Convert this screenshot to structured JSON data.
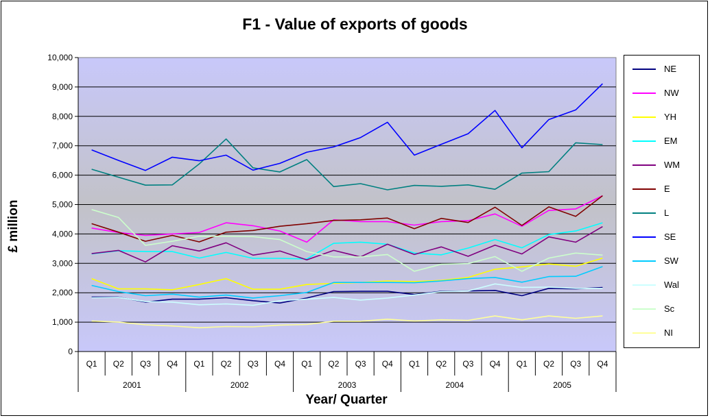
{
  "chart_data": {
    "type": "line",
    "title": "F1 - Value of exports of goods",
    "xlabel": "Year/ Quarter",
    "ylabel": "£ million",
    "ylim": [
      0,
      10000
    ],
    "yticks": [
      "0",
      "1,000",
      "2,000",
      "3,000",
      "4,000",
      "5,000",
      "6,000",
      "7,000",
      "8,000",
      "9,000",
      "10,000"
    ],
    "ytick_values": [
      0,
      1000,
      2000,
      3000,
      4000,
      5000,
      6000,
      7000,
      8000,
      9000,
      10000
    ],
    "years": [
      "2001",
      "2002",
      "2003",
      "2004",
      "2005"
    ],
    "quarters": [
      "Q1",
      "Q2",
      "Q3",
      "Q4"
    ],
    "categories": [
      "Q1",
      "Q2",
      "Q3",
      "Q4",
      "Q1",
      "Q2",
      "Q3",
      "Q4",
      "Q1",
      "Q2",
      "Q3",
      "Q4",
      "Q1",
      "Q2",
      "Q3",
      "Q4",
      "Q1",
      "Q2",
      "Q3",
      "Q4"
    ],
    "grid": true,
    "legend_position": "right",
    "plot_background": "gradient lavender-grey",
    "series": [
      {
        "name": "NE",
        "color": "#000080",
        "values": [
          1850,
          1850,
          1680,
          1780,
          1780,
          1830,
          1730,
          1650,
          1820,
          2040,
          2050,
          2050,
          1940,
          2050,
          2060,
          2080,
          1900,
          2150,
          2130,
          2180
        ]
      },
      {
        "name": "NW",
        "color": "#FF00FF",
        "values": [
          4200,
          4050,
          3950,
          4000,
          4050,
          4380,
          4280,
          4100,
          3720,
          4480,
          4420,
          4420,
          4300,
          4420,
          4450,
          4680,
          4260,
          4800,
          4850,
          5300
        ]
      },
      {
        "name": "YH",
        "color": "#FFFF00",
        "values": [
          2480,
          2130,
          2130,
          2100,
          2280,
          2480,
          2120,
          2120,
          2280,
          2320,
          2350,
          2400,
          2380,
          2420,
          2520,
          2800,
          2880,
          2980,
          2900,
          3180
        ]
      },
      {
        "name": "EM",
        "color": "#00FFFF",
        "values": [
          3320,
          3430,
          3400,
          3400,
          3180,
          3370,
          3170,
          3170,
          3150,
          3680,
          3720,
          3650,
          3350,
          3290,
          3520,
          3810,
          3530,
          3980,
          4100,
          4380
        ]
      },
      {
        "name": "WM",
        "color": "#800080",
        "values": [
          3330,
          3440,
          3050,
          3600,
          3420,
          3700,
          3280,
          3420,
          3120,
          3440,
          3220,
          3650,
          3300,
          3560,
          3240,
          3620,
          3320,
          3900,
          3720,
          4250
        ]
      },
      {
        "name": "E",
        "color": "#800000",
        "values": [
          4350,
          4060,
          3750,
          3950,
          3730,
          4060,
          4120,
          4260,
          4350,
          4460,
          4480,
          4540,
          4180,
          4530,
          4390,
          4910,
          4290,
          4920,
          4600,
          5300
        ]
      },
      {
        "name": "L",
        "color": "#008080",
        "values": [
          6200,
          5930,
          5660,
          5670,
          6380,
          7230,
          6250,
          6110,
          6530,
          5610,
          5710,
          5500,
          5650,
          5620,
          5670,
          5520,
          6070,
          6120,
          7100,
          7040
        ]
      },
      {
        "name": "SE",
        "color": "#0000FF",
        "values": [
          6860,
          6500,
          6160,
          6610,
          6490,
          6680,
          6170,
          6400,
          6780,
          6960,
          7280,
          7800,
          6680,
          7050,
          7410,
          8200,
          6930,
          7890,
          8220,
          9110
        ]
      },
      {
        "name": "SW",
        "color": "#00CCFF",
        "values": [
          2250,
          2040,
          1900,
          1950,
          1850,
          1920,
          1820,
          1900,
          2010,
          2350,
          2350,
          2350,
          2340,
          2400,
          2480,
          2520,
          2360,
          2550,
          2560,
          2890
        ]
      },
      {
        "name": "Wal",
        "color": "#CCFFFF",
        "values": [
          1830,
          1840,
          1700,
          1680,
          1590,
          1620,
          1570,
          1730,
          1780,
          1840,
          1750,
          1820,
          1920,
          2040,
          2060,
          2300,
          2180,
          2190,
          2150,
          2150
        ]
      },
      {
        "name": "Sc",
        "color": "#CCFFCC",
        "values": [
          4830,
          4560,
          3610,
          3750,
          3920,
          3920,
          3910,
          3810,
          3400,
          3220,
          3220,
          3300,
          2730,
          2970,
          2990,
          3230,
          2730,
          3180,
          3350,
          3280
        ]
      },
      {
        "name": "NI",
        "color": "#FFFF99",
        "values": [
          1040,
          1000,
          910,
          870,
          810,
          850,
          840,
          900,
          920,
          1030,
          1030,
          1100,
          1040,
          1080,
          1060,
          1210,
          1080,
          1210,
          1130,
          1210
        ]
      }
    ]
  }
}
